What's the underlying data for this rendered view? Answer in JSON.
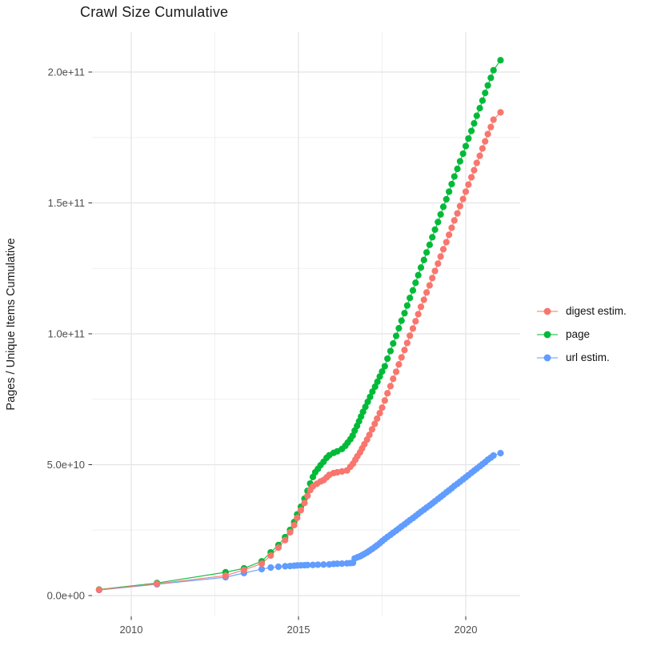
{
  "title": "Crawl Size Cumulative",
  "chart_data": {
    "type": "line",
    "title": "Crawl Size Cumulative",
    "xlabel": "",
    "ylabel": "Pages / Unique Items Cumulative",
    "x_unit": "year (decimal)",
    "y_unit": "count, stored as value × 1e9",
    "xlim": [
      2008.83,
      2021.63
    ],
    "ylim_e9": [
      -8,
      215.3
    ],
    "grid": true,
    "legend_position": "right-center",
    "x_ticks": [
      {
        "value": 2010,
        "label": "2010"
      },
      {
        "value": 2015,
        "label": "2015"
      },
      {
        "value": 2020,
        "label": "2020"
      }
    ],
    "y_ticks": [
      {
        "value_e9": 0,
        "label": "0.0e+00"
      },
      {
        "value_e9": 50,
        "label": "5.0e+10"
      },
      {
        "value_e9": 100,
        "label": "1.0e+11"
      },
      {
        "value_e9": 150,
        "label": "1.5e+11"
      },
      {
        "value_e9": 200,
        "label": "2.0e+11"
      }
    ],
    "x_minor_gridlines": [
      2012.5,
      2017.5
    ],
    "y_minor_gridlines_e9": [
      25,
      75,
      125,
      175
    ],
    "colors": {
      "digest_estim": "#F8766D",
      "page": "#00BA38",
      "url_estim": "#619CFF",
      "grid_major": "#E4E4E4",
      "grid_minor": "#F0F0F0",
      "tick_mark": "#333333",
      "axis_text": "#4d4d4d"
    },
    "series": [
      {
        "name": "url estim.",
        "color": "#619CFF",
        "points": [
          [
            2009.04,
            2.1
          ],
          [
            2010.77,
            4.3
          ],
          [
            2012.82,
            7.0
          ],
          [
            2013.37,
            8.6
          ],
          [
            2013.9,
            10.1
          ],
          [
            2014.17,
            10.7
          ],
          [
            2014.4,
            11.0
          ],
          [
            2014.6,
            11.2
          ],
          [
            2014.75,
            11.3
          ],
          [
            2014.87,
            11.4
          ],
          [
            2014.96,
            11.5
          ],
          [
            2015.07,
            11.55
          ],
          [
            2015.18,
            11.6
          ],
          [
            2015.27,
            11.65
          ],
          [
            2015.43,
            11.7
          ],
          [
            2015.58,
            11.8
          ],
          [
            2015.75,
            11.85
          ],
          [
            2015.92,
            11.9
          ],
          [
            2016.05,
            12.1
          ],
          [
            2016.16,
            12.15
          ],
          [
            2016.3,
            12.2
          ],
          [
            2016.45,
            12.3
          ],
          [
            2016.55,
            12.4
          ],
          [
            2016.63,
            12.5
          ],
          [
            2016.68,
            14.2
          ],
          [
            2016.76,
            14.6
          ],
          [
            2016.84,
            15.0
          ],
          [
            2016.9,
            15.4
          ],
          [
            2016.97,
            15.9
          ],
          [
            2017.05,
            16.5
          ],
          [
            2017.12,
            17.1
          ],
          [
            2017.2,
            17.8
          ],
          [
            2017.28,
            18.5
          ],
          [
            2017.35,
            19.2
          ],
          [
            2017.43,
            20.0
          ],
          [
            2017.5,
            20.8
          ],
          [
            2017.58,
            21.6
          ],
          [
            2017.66,
            22.4
          ],
          [
            2017.75,
            23.2
          ],
          [
            2017.83,
            24.0
          ],
          [
            2017.92,
            24.8
          ],
          [
            2018.0,
            25.6
          ],
          [
            2018.08,
            26.4
          ],
          [
            2018.17,
            27.2
          ],
          [
            2018.25,
            28.0
          ],
          [
            2018.33,
            28.8
          ],
          [
            2018.42,
            29.6
          ],
          [
            2018.5,
            30.4
          ],
          [
            2018.58,
            31.2
          ],
          [
            2018.66,
            32.0
          ],
          [
            2018.75,
            32.8
          ],
          [
            2018.83,
            33.6
          ],
          [
            2018.92,
            34.4
          ],
          [
            2019.0,
            35.2
          ],
          [
            2019.08,
            36.0
          ],
          [
            2019.17,
            36.9
          ],
          [
            2019.25,
            37.7
          ],
          [
            2019.33,
            38.5
          ],
          [
            2019.42,
            39.4
          ],
          [
            2019.5,
            40.2
          ],
          [
            2019.58,
            41.0
          ],
          [
            2019.66,
            41.9
          ],
          [
            2019.75,
            42.7
          ],
          [
            2019.83,
            43.5
          ],
          [
            2019.92,
            44.4
          ],
          [
            2020.0,
            45.2
          ],
          [
            2020.08,
            46.0
          ],
          [
            2020.17,
            46.9
          ],
          [
            2020.25,
            47.7
          ],
          [
            2020.33,
            48.5
          ],
          [
            2020.42,
            49.4
          ],
          [
            2020.5,
            50.2
          ],
          [
            2020.58,
            51.0
          ],
          [
            2020.66,
            51.9
          ],
          [
            2020.75,
            52.7
          ],
          [
            2020.83,
            53.5
          ],
          [
            2021.04,
            54.4
          ]
        ]
      },
      {
        "name": "page",
        "color": "#00BA38",
        "points": [
          [
            2009.04,
            2.3
          ],
          [
            2010.77,
            4.8
          ],
          [
            2012.82,
            8.9
          ],
          [
            2013.37,
            10.4
          ],
          [
            2013.9,
            13.1
          ],
          [
            2014.17,
            16.5
          ],
          [
            2014.4,
            19.3
          ],
          [
            2014.6,
            22.3
          ],
          [
            2014.75,
            25.1
          ],
          [
            2014.87,
            28.1
          ],
          [
            2014.96,
            31.0
          ],
          [
            2015.07,
            33.9
          ],
          [
            2015.18,
            37.0
          ],
          [
            2015.27,
            40.0
          ],
          [
            2015.35,
            42.8
          ],
          [
            2015.43,
            45.3
          ],
          [
            2015.5,
            47.1
          ],
          [
            2015.58,
            48.4
          ],
          [
            2015.66,
            49.8
          ],
          [
            2015.75,
            51.1
          ],
          [
            2015.84,
            52.6
          ],
          [
            2015.92,
            53.6
          ],
          [
            2016.05,
            54.5
          ],
          [
            2016.16,
            55.1
          ],
          [
            2016.3,
            56.0
          ],
          [
            2016.4,
            57.2
          ],
          [
            2016.47,
            58.4
          ],
          [
            2016.55,
            59.7
          ],
          [
            2016.62,
            61.1
          ],
          [
            2016.68,
            63.0
          ],
          [
            2016.75,
            64.8
          ],
          [
            2016.81,
            66.6
          ],
          [
            2016.87,
            68.4
          ],
          [
            2016.93,
            70.2
          ],
          [
            2017.0,
            72.1
          ],
          [
            2017.07,
            74.0
          ],
          [
            2017.14,
            75.9
          ],
          [
            2017.21,
            77.9
          ],
          [
            2017.29,
            79.8
          ],
          [
            2017.36,
            81.7
          ],
          [
            2017.43,
            83.7
          ],
          [
            2017.5,
            85.6
          ],
          [
            2017.58,
            87.6
          ],
          [
            2017.66,
            90.5
          ],
          [
            2017.75,
            93.4
          ],
          [
            2017.83,
            96.3
          ],
          [
            2017.92,
            99.2
          ],
          [
            2018.0,
            102.1
          ],
          [
            2018.08,
            105.0
          ],
          [
            2018.17,
            107.9
          ],
          [
            2018.25,
            110.8
          ],
          [
            2018.33,
            113.7
          ],
          [
            2018.42,
            116.6
          ],
          [
            2018.5,
            119.5
          ],
          [
            2018.58,
            122.4
          ],
          [
            2018.66,
            125.3
          ],
          [
            2018.75,
            128.2
          ],
          [
            2018.83,
            131.1
          ],
          [
            2018.92,
            134.0
          ],
          [
            2019.0,
            136.9
          ],
          [
            2019.08,
            139.8
          ],
          [
            2019.17,
            142.7
          ],
          [
            2019.25,
            145.6
          ],
          [
            2019.33,
            148.5
          ],
          [
            2019.42,
            151.4
          ],
          [
            2019.5,
            154.3
          ],
          [
            2019.58,
            157.2
          ],
          [
            2019.66,
            160.1
          ],
          [
            2019.75,
            163.0
          ],
          [
            2019.83,
            165.9
          ],
          [
            2019.92,
            168.8
          ],
          [
            2020.0,
            171.7
          ],
          [
            2020.08,
            174.6
          ],
          [
            2020.17,
            177.5
          ],
          [
            2020.25,
            180.4
          ],
          [
            2020.33,
            183.3
          ],
          [
            2020.42,
            186.2
          ],
          [
            2020.5,
            189.1
          ],
          [
            2020.58,
            192.0
          ],
          [
            2020.66,
            194.9
          ],
          [
            2020.75,
            197.8
          ],
          [
            2020.83,
            200.7
          ],
          [
            2021.04,
            204.5
          ]
        ]
      },
      {
        "name": "digest estim.",
        "color": "#F8766D",
        "points": [
          [
            2009.04,
            2.2
          ],
          [
            2010.77,
            4.5
          ],
          [
            2012.82,
            7.6
          ],
          [
            2013.37,
            9.8
          ],
          [
            2013.9,
            12.2
          ],
          [
            2014.17,
            15.3
          ],
          [
            2014.4,
            18.3
          ],
          [
            2014.6,
            21.2
          ],
          [
            2014.75,
            24.2
          ],
          [
            2014.87,
            26.9
          ],
          [
            2014.96,
            29.7
          ],
          [
            2015.07,
            32.6
          ],
          [
            2015.18,
            35.4
          ],
          [
            2015.27,
            38.1
          ],
          [
            2015.35,
            40.3
          ],
          [
            2015.43,
            41.7
          ],
          [
            2015.55,
            42.7
          ],
          [
            2015.66,
            43.6
          ],
          [
            2015.75,
            44.1
          ],
          [
            2015.84,
            45.1
          ],
          [
            2015.92,
            46.1
          ],
          [
            2016.05,
            46.8
          ],
          [
            2016.16,
            47.1
          ],
          [
            2016.3,
            47.4
          ],
          [
            2016.45,
            47.8
          ],
          [
            2016.55,
            49.2
          ],
          [
            2016.63,
            50.4
          ],
          [
            2016.7,
            51.9
          ],
          [
            2016.76,
            53.2
          ],
          [
            2016.84,
            54.7
          ],
          [
            2016.9,
            56.2
          ],
          [
            2016.97,
            57.8
          ],
          [
            2017.05,
            59.6
          ],
          [
            2017.12,
            61.4
          ],
          [
            2017.2,
            63.5
          ],
          [
            2017.28,
            65.6
          ],
          [
            2017.35,
            67.6
          ],
          [
            2017.43,
            69.7
          ],
          [
            2017.5,
            71.8
          ],
          [
            2017.58,
            74.5
          ],
          [
            2017.66,
            77.3
          ],
          [
            2017.75,
            80.0
          ],
          [
            2017.83,
            82.8
          ],
          [
            2017.92,
            85.5
          ],
          [
            2018.0,
            88.3
          ],
          [
            2018.08,
            91.0
          ],
          [
            2018.17,
            93.8
          ],
          [
            2018.25,
            96.5
          ],
          [
            2018.33,
            99.3
          ],
          [
            2018.42,
            102.0
          ],
          [
            2018.5,
            104.8
          ],
          [
            2018.58,
            107.5
          ],
          [
            2018.66,
            110.3
          ],
          [
            2018.75,
            113.0
          ],
          [
            2018.83,
            115.8
          ],
          [
            2018.92,
            118.5
          ],
          [
            2019.0,
            121.3
          ],
          [
            2019.08,
            124.0
          ],
          [
            2019.17,
            126.8
          ],
          [
            2019.25,
            129.5
          ],
          [
            2019.33,
            132.3
          ],
          [
            2019.42,
            135.0
          ],
          [
            2019.5,
            137.8
          ],
          [
            2019.58,
            140.5
          ],
          [
            2019.66,
            143.3
          ],
          [
            2019.75,
            146.0
          ],
          [
            2019.83,
            148.8
          ],
          [
            2019.92,
            151.5
          ],
          [
            2020.0,
            154.3
          ],
          [
            2020.08,
            157.0
          ],
          [
            2020.17,
            159.8
          ],
          [
            2020.25,
            162.5
          ],
          [
            2020.33,
            165.3
          ],
          [
            2020.42,
            168.0
          ],
          [
            2020.5,
            170.8
          ],
          [
            2020.58,
            173.5
          ],
          [
            2020.66,
            176.3
          ],
          [
            2020.75,
            179.0
          ],
          [
            2020.83,
            181.8
          ],
          [
            2021.04,
            184.6
          ]
        ]
      }
    ],
    "legend_order": [
      "digest estim.",
      "page",
      "url estim."
    ]
  }
}
